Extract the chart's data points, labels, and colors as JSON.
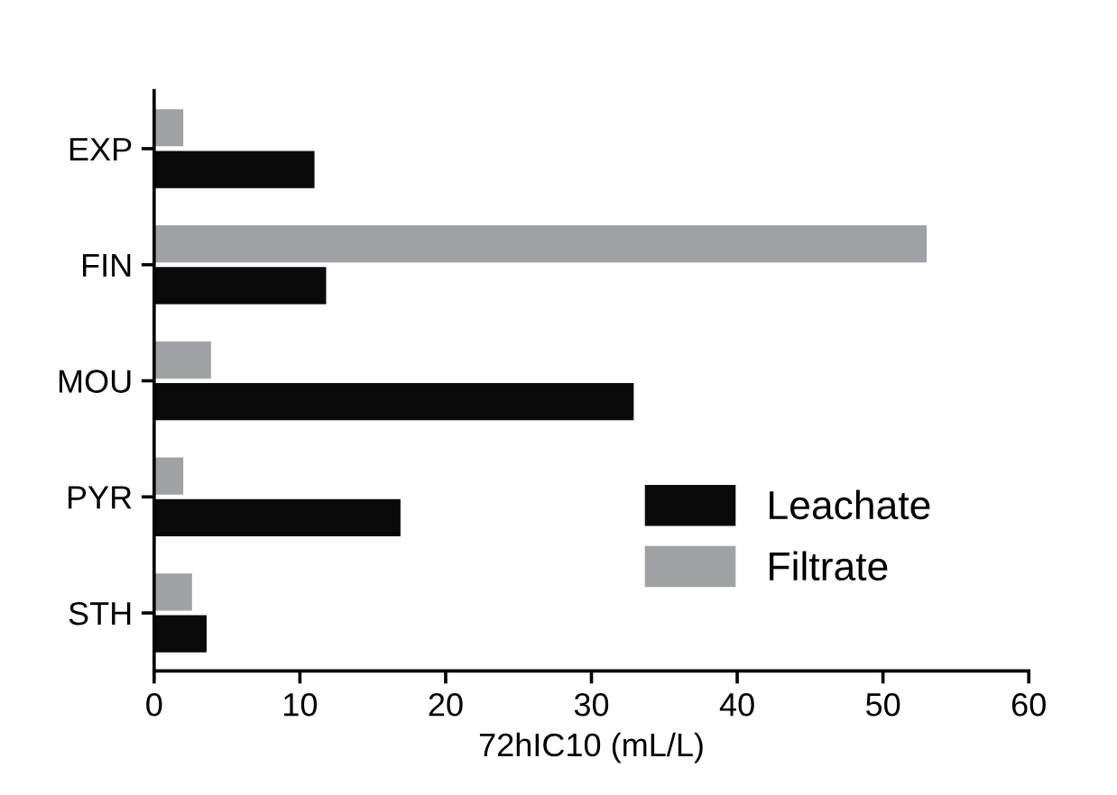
{
  "chart_data": {
    "type": "bar",
    "orientation": "horizontal",
    "xlabel": "72hIC10 (mL/L)",
    "categories": [
      "EXP",
      "FIN",
      "MOU",
      "PYR",
      "STH"
    ],
    "series": [
      {
        "name": "Leachate",
        "color": "#0a0a0a",
        "values": [
          11.0,
          11.8,
          32.9,
          16.9,
          3.6
        ]
      },
      {
        "name": "Filtrate",
        "color": "#a0a1a5",
        "values": [
          2.0,
          53.0,
          3.9,
          2.0,
          2.6
        ]
      }
    ],
    "xlim": [
      0,
      60
    ],
    "xticks": [
      0,
      10,
      20,
      30,
      40,
      50,
      60
    ],
    "grid": false,
    "legend": "bottom right"
  }
}
